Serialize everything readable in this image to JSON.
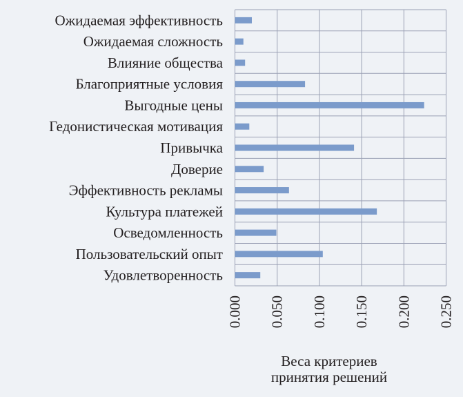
{
  "chart_data": {
    "type": "bar",
    "orientation": "horizontal",
    "categories": [
      "Ожидаемая эффективность",
      "Ожидаемая сложность",
      "Влияние общества",
      "Благоприятные условия",
      "Выгодные цены",
      "Гедонистическая мотивация",
      "Привычка",
      "Доверие",
      "Эффективность рекламы",
      "Культура платежей",
      "Осведомленность",
      "Пользовательский опыт",
      "Удовлетворенность"
    ],
    "values": [
      0.02,
      0.01,
      0.012,
      0.083,
      0.224,
      0.017,
      0.141,
      0.034,
      0.064,
      0.168,
      0.049,
      0.104,
      0.03
    ],
    "xlabel": [
      "Веса критериев",
      "принятия решений"
    ],
    "ylabel": "",
    "xlim": [
      0,
      0.25
    ],
    "xticks": [
      "0.000",
      "0.050",
      "0.100",
      "0.150",
      "0.200",
      "0.250"
    ],
    "grid": true,
    "legend": "none",
    "colors": {
      "bar": "#7b9bcb",
      "grid": "#9aa0b4",
      "background": "#eff2f6"
    }
  }
}
